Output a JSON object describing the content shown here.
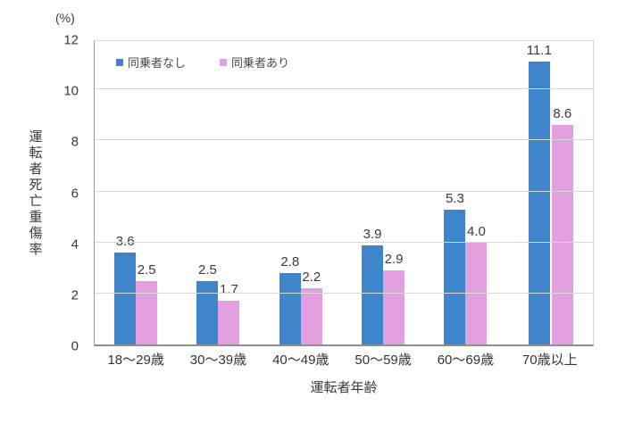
{
  "chart_data": {
    "type": "bar",
    "title": "",
    "unit_label": "(%)",
    "xlabel": "運転者年齢",
    "ylabel": "運転者死亡重傷率",
    "categories": [
      "18〜29歳",
      "30〜39歳",
      "40〜49歳",
      "50〜59歳",
      "60〜69歳",
      "70歳以上"
    ],
    "series": [
      {
        "name": "同乗者なし",
        "color": "#3f85cb",
        "values": [
          3.6,
          2.5,
          2.8,
          3.9,
          5.3,
          11.1
        ]
      },
      {
        "name": "同乗者あり",
        "color": "#e2a0de",
        "values": [
          2.5,
          1.7,
          2.2,
          2.9,
          4.0,
          8.6
        ]
      }
    ],
    "ylim": [
      0,
      12
    ],
    "ytick_step": 2,
    "yticks": [
      "0",
      "2",
      "4",
      "6",
      "8",
      "10",
      "12"
    ],
    "grid": true,
    "legend_position": "top-left-inside",
    "value_label_decimals": 1
  },
  "colors": {
    "gridline": "#d9d9d9",
    "axis": "#8f8f8f",
    "text": "#3a3a3a",
    "background": "#ffffff"
  }
}
